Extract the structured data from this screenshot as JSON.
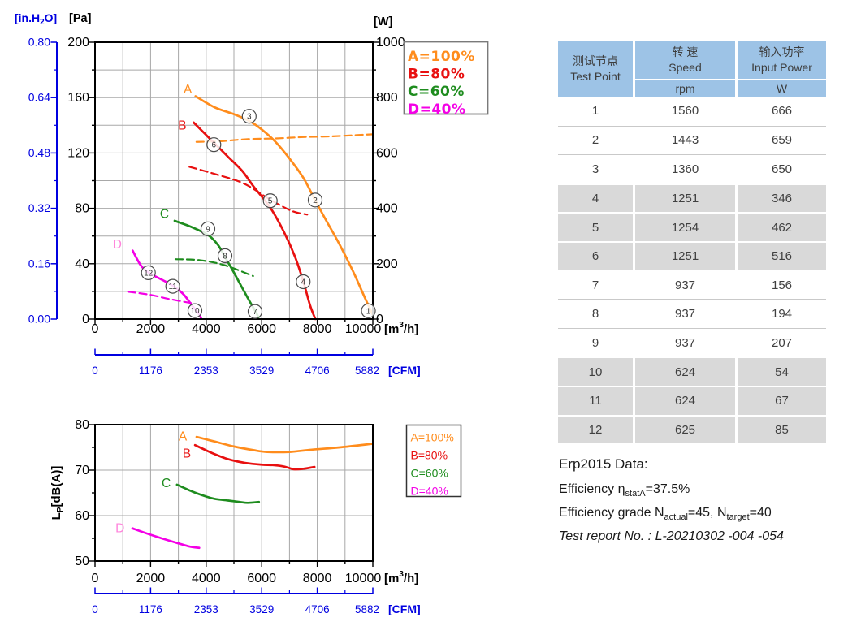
{
  "chart_data": [
    {
      "type": "line",
      "id": "pressure-power",
      "x": {
        "min": 0,
        "max": 10000,
        "major_ticks": [
          0,
          2000,
          4000,
          6000,
          8000,
          10000
        ],
        "minor_step": 1000,
        "label_parts": {
          "pre": "[m",
          "sup": "3",
          "post": "/h]"
        }
      },
      "y_pa": {
        "label": "[Pa]",
        "min": 0,
        "max": 200,
        "ticks": [
          0,
          40,
          80,
          120,
          160,
          200
        ],
        "minor_step": 20
      },
      "y_inh2o": {
        "label_parts": {
          "pre": "[in.H",
          "sub": "2",
          "post": "O]"
        },
        "ticks": [
          "0.00",
          "0.16",
          "0.32",
          "0.48",
          "0.64",
          "0.80"
        ]
      },
      "y_w": {
        "label": "[W]",
        "ticks": [
          0,
          200,
          400,
          600,
          800,
          1000
        ]
      },
      "x_cfm": {
        "label": "[CFM]",
        "ticks": [
          0,
          1176,
          2353,
          3529,
          4706,
          5882
        ]
      },
      "series": [
        {
          "name": "A",
          "color": "#FF8C1C",
          "dash": false,
          "label": {
            "text": "A",
            "x": 3340,
            "y": 166
          },
          "points": [
            [
              3620,
              161
            ],
            [
              4300,
              153
            ],
            [
              5000,
              148
            ],
            [
              5560,
              143
            ],
            [
              6000,
              137
            ],
            [
              6500,
              128
            ],
            [
              7000,
              116
            ],
            [
              7500,
              102
            ],
            [
              7920,
              86
            ],
            [
              8300,
              72
            ],
            [
              8800,
              54
            ],
            [
              9300,
              34
            ],
            [
              9700,
              16
            ],
            [
              10000,
              3
            ]
          ]
        },
        {
          "name": "A-power",
          "color": "#FF8C1C",
          "dash": true,
          "points": [
            [
              3650,
              128
            ],
            [
              4500,
              128.5
            ],
            [
              5500,
              130
            ],
            [
              6500,
              130.5
            ],
            [
              7500,
              131.5
            ],
            [
              8500,
              132
            ],
            [
              9500,
              133
            ],
            [
              10000,
              133.5
            ]
          ]
        },
        {
          "name": "B",
          "color": "#E81010",
          "dash": false,
          "label": {
            "text": "B",
            "x": 3140,
            "y": 140
          },
          "points": [
            [
              3550,
              142
            ],
            [
              4000,
              133
            ],
            [
              4300,
              127
            ],
            [
              4800,
              117
            ],
            [
              5300,
              107
            ],
            [
              5700,
              96
            ],
            [
              6325,
              80
            ],
            [
              6800,
              63
            ],
            [
              7200,
              45
            ],
            [
              7500,
              27
            ],
            [
              7740,
              10
            ],
            [
              7930,
              0
            ]
          ]
        },
        {
          "name": "B-power",
          "color": "#E81010",
          "dash": true,
          "points": [
            [
              3400,
              110
            ],
            [
              4280,
              105
            ],
            [
              5350,
              98
            ],
            [
              6330,
              86
            ],
            [
              7100,
              78
            ],
            [
              7640,
              75.5
            ]
          ]
        },
        {
          "name": "C",
          "color": "#1E8C1E",
          "dash": false,
          "label": {
            "text": "C",
            "x": 2500,
            "y": 76
          },
          "points": [
            [
              2865,
              71
            ],
            [
              3500,
              66.3
            ],
            [
              4085,
              60.5
            ],
            [
              4424,
              53.6
            ],
            [
              4669,
              45.2
            ],
            [
              4962,
              35
            ],
            [
              5254,
              24.2
            ],
            [
              5547,
              13.5
            ],
            [
              5760,
              6.1
            ],
            [
              5886,
              1.4
            ]
          ]
        },
        {
          "name": "C-power",
          "color": "#1E8C1E",
          "dash": true,
          "points": [
            [
              2895,
              43.3
            ],
            [
              3793,
              42.5
            ],
            [
              4669,
              38.9
            ],
            [
              5693,
              31.1
            ]
          ]
        },
        {
          "name": "D",
          "color": "#F400E6",
          "dash": false,
          "label": {
            "text": "D",
            "x": 800,
            "y": 54,
            "color": "#FF85DC"
          },
          "points": [
            [
              1354,
              49.5
            ],
            [
              1646,
              38.9
            ],
            [
              1939,
              33.5
            ],
            [
              2523,
              27.2
            ],
            [
              2865,
              23.3
            ],
            [
              3207,
              17.4
            ],
            [
              3500,
              9.6
            ],
            [
              3743,
              3.7
            ],
            [
              3820,
              0.5
            ]
          ]
        },
        {
          "name": "D-power",
          "color": "#F400E6",
          "dash": true,
          "points": [
            [
              1190,
              19.8
            ],
            [
              2000,
              17.5
            ],
            [
              2600,
              14.8
            ],
            [
              3450,
              11.6
            ]
          ]
        }
      ],
      "markers": [
        {
          "n": "1",
          "x": 9840,
          "y": 6
        },
        {
          "n": "2",
          "x": 7924,
          "y": 86
        },
        {
          "n": "3",
          "x": 5550,
          "y": 146.5
        },
        {
          "n": "4",
          "x": 7494,
          "y": 27
        },
        {
          "n": "5",
          "x": 6307,
          "y": 85.5
        },
        {
          "n": "6",
          "x": 4278,
          "y": 126
        },
        {
          "n": "7",
          "x": 5760,
          "y": 5.5
        },
        {
          "n": "8",
          "x": 4678,
          "y": 45.8
        },
        {
          "n": "9",
          "x": 4064,
          "y": 65.2
        },
        {
          "n": "10",
          "x": 3596,
          "y": 6.1
        },
        {
          "n": "11",
          "x": 2797,
          "y": 23.7
        },
        {
          "n": "12",
          "x": 1921,
          "y": 33.5
        }
      ]
    },
    {
      "type": "line",
      "id": "noise",
      "y": {
        "label_parts": {
          "pre": "L",
          "sub": "P",
          "post": "[dB(A)]"
        },
        "min": 50,
        "max": 80,
        "ticks": [
          50,
          60,
          70,
          80
        ],
        "minor_step": 5
      },
      "series": [
        {
          "name": "A",
          "color": "#FF8C1C",
          "dash": false,
          "label": {
            "text": "A",
            "x": 3160,
            "y": 77.4
          },
          "points": [
            [
              3655,
              77.3
            ],
            [
              4300,
              76.3
            ],
            [
              5000,
              75.2
            ],
            [
              5700,
              74.4
            ],
            [
              6200,
              74
            ],
            [
              7000,
              74
            ],
            [
              7800,
              74.5
            ],
            [
              8800,
              75
            ],
            [
              10000,
              75.8
            ]
          ]
        },
        {
          "name": "B",
          "color": "#E81010",
          "dash": false,
          "label": {
            "text": "B",
            "x": 3300,
            "y": 73.7
          },
          "points": [
            [
              3600,
              75.5
            ],
            [
              4200,
              73.8
            ],
            [
              4800,
              72.4
            ],
            [
              5400,
              71.6
            ],
            [
              6000,
              71.2
            ],
            [
              6400,
              71.1
            ],
            [
              6800,
              70.8
            ],
            [
              7150,
              70.2
            ],
            [
              7500,
              70.3
            ],
            [
              7900,
              70.7
            ]
          ]
        },
        {
          "name": "C",
          "color": "#1E8C1E",
          "dash": false,
          "label": {
            "text": "C",
            "x": 2560,
            "y": 67.1
          },
          "points": [
            [
              2950,
              66.8
            ],
            [
              3500,
              65.3
            ],
            [
              4000,
              64.2
            ],
            [
              4300,
              63.7
            ],
            [
              4800,
              63.3
            ],
            [
              5200,
              63
            ],
            [
              5500,
              62.8
            ],
            [
              5900,
              63
            ]
          ]
        },
        {
          "name": "D",
          "color": "#F400E6",
          "dash": false,
          "label": {
            "text": "D",
            "x": 900,
            "y": 57.2,
            "color": "#FF85DC"
          },
          "points": [
            [
              1345,
              57.2
            ],
            [
              1800,
              56.2
            ],
            [
              2400,
              55
            ],
            [
              3000,
              53.9
            ],
            [
              3400,
              53.2
            ],
            [
              3750,
              52.9
            ]
          ]
        }
      ]
    }
  ],
  "legend": {
    "entries": [
      {
        "label": "A=100%",
        "color": "#FF8C1C"
      },
      {
        "label": "B=80%",
        "color": "#E81010"
      },
      {
        "label": "C=60%",
        "color": "#1E8C1E"
      },
      {
        "label": "D=40%",
        "color": "#F400E6"
      }
    ]
  },
  "table": {
    "header": {
      "col1_zh": "测试节点",
      "col1_en": "Test Point",
      "col2_zh": "转 速",
      "col2_en": "Speed",
      "col2_unit": "rpm",
      "col3_zh": "输入功率",
      "col3_en": "Input Power",
      "col3_unit": "W"
    },
    "rows": [
      [
        1,
        1560,
        666
      ],
      [
        2,
        1443,
        659
      ],
      [
        3,
        1360,
        650
      ],
      [
        4,
        1251,
        346
      ],
      [
        5,
        1254,
        462
      ],
      [
        6,
        1251,
        516
      ],
      [
        7,
        937,
        156
      ],
      [
        8,
        937,
        194
      ],
      [
        9,
        937,
        207
      ],
      [
        10,
        624,
        54
      ],
      [
        11,
        624,
        67
      ],
      [
        12,
        625,
        85
      ]
    ]
  },
  "erp": {
    "title": "Erp2015 Data:",
    "eff": [
      "Efficiency η",
      "statA",
      "=37.5%"
    ],
    "grade": [
      "Efficiency grade N",
      "actual",
      "=45, N",
      "target",
      "=40"
    ],
    "report": "Test report No. : L-20210302 -004 -054"
  }
}
